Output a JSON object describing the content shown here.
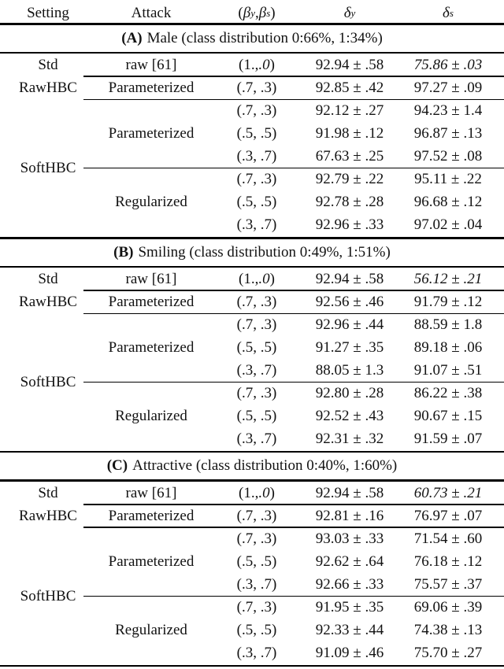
{
  "header": {
    "setting": "Setting",
    "attack": "Attack",
    "beta_col": {
      "open": "(",
      "sym1": "β",
      "sup1": "y",
      "sep": ", ",
      "sym2": "β",
      "sup2": "s",
      "close": ")"
    },
    "delta_y_col": {
      "sym": "δ",
      "sup": "y"
    },
    "delta_s_col": {
      "sym": "δ",
      "sup": "s"
    }
  },
  "row_labels": {
    "std": "Std",
    "rawhbc": "RawHBC",
    "softhbc": "SoftHBC",
    "raw_attack": "raw [61]",
    "parameterized": "Parameterized",
    "regularized": "Regularized"
  },
  "sections": [
    {
      "tag": "(A)",
      "title": "Male (class distribution 0:66%, 1:34%)",
      "raw_row": {
        "beta_pre": "(1., ",
        "beta_it": ".0",
        "beta_close": ")",
        "dy": "92.94 ± .58",
        "ds": "75.86 ± .03"
      },
      "param_row": {
        "beta": "(.7, .3)",
        "dy": "92.85 ± .42",
        "ds": "97.27 ± .09"
      },
      "soft_rows": [
        {
          "beta": "(.7, .3)",
          "dy": "92.12 ± .27",
          "ds": "94.23 ± 1.4"
        },
        {
          "beta": "(.5, .5)",
          "dy": "91.98 ± .12",
          "ds": "96.87 ± .13"
        },
        {
          "beta": "(.3, .7)",
          "dy": "67.63 ± .25",
          "ds": "97.52 ± .08"
        },
        {
          "beta": "(.7, .3)",
          "dy": "92.79 ± .22",
          "ds": "95.11 ± .22"
        },
        {
          "beta": "(.5, .5)",
          "dy": "92.78 ± .28",
          "ds": "96.68 ± .12"
        },
        {
          "beta": "(.3, .7)",
          "dy": "92.96 ± .33",
          "ds": "97.02 ± .04"
        }
      ]
    },
    {
      "tag": "(B)",
      "title": "Smiling (class distribution 0:49%, 1:51%)",
      "raw_row": {
        "beta_pre": "(1., ",
        "beta_it": ".0",
        "beta_close": ")",
        "dy": "92.94 ± .58",
        "ds": "56.12 ± .21"
      },
      "param_row": {
        "beta": "(.7, .3)",
        "dy": "92.56 ± .46",
        "ds": "91.79 ± .12"
      },
      "soft_rows": [
        {
          "beta": "(.7, .3)",
          "dy": "92.96 ± .44",
          "ds": "88.59 ± 1.8"
        },
        {
          "beta": "(.5, .5)",
          "dy": "91.27 ± .35",
          "ds": "89.18 ± .06"
        },
        {
          "beta": "(.3, .7)",
          "dy": "88.05 ± 1.3",
          "ds": "91.07 ± .51"
        },
        {
          "beta": "(.7, .3)",
          "dy": "92.80 ± .28",
          "ds": "86.22 ± .38"
        },
        {
          "beta": "(.5, .5)",
          "dy": "92.52 ± .43",
          "ds": "90.67 ± .15"
        },
        {
          "beta": "(.3, .7)",
          "dy": "92.31 ± .32",
          "ds": "91.59 ± .07"
        }
      ]
    },
    {
      "tag": "(C)",
      "title": "Attractive (class distribution 0:40%, 1:60%)",
      "raw_row": {
        "beta_pre": "(1., ",
        "beta_it": ".0",
        "beta_close": ")",
        "dy": "92.94 ± .58",
        "ds": "60.73 ± .21"
      },
      "param_row": {
        "beta": "(.7, .3)",
        "dy": "92.81 ± .16",
        "ds": "76.97 ± .07"
      },
      "soft_rows": [
        {
          "beta": "(.7, .3)",
          "dy": "93.03 ± .33",
          "ds": "71.54 ± .60"
        },
        {
          "beta": "(.5, .5)",
          "dy": "92.62 ± .64",
          "ds": "76.18 ± .12"
        },
        {
          "beta": "(.3, .7)",
          "dy": "92.66 ± .33",
          "ds": "75.57 ± .37"
        },
        {
          "beta": "(.7, .3)",
          "dy": "91.95 ± .35",
          "ds": "69.06 ± .39"
        },
        {
          "beta": "(.5, .5)",
          "dy": "92.33 ± .44",
          "ds": "74.38 ± .13"
        },
        {
          "beta": "(.3, .7)",
          "dy": "91.09 ± .46",
          "ds": "75.70 ± .27"
        }
      ]
    }
  ],
  "colors": {
    "text": "#121212",
    "rule": "#000000",
    "background": "#ffffff"
  }
}
